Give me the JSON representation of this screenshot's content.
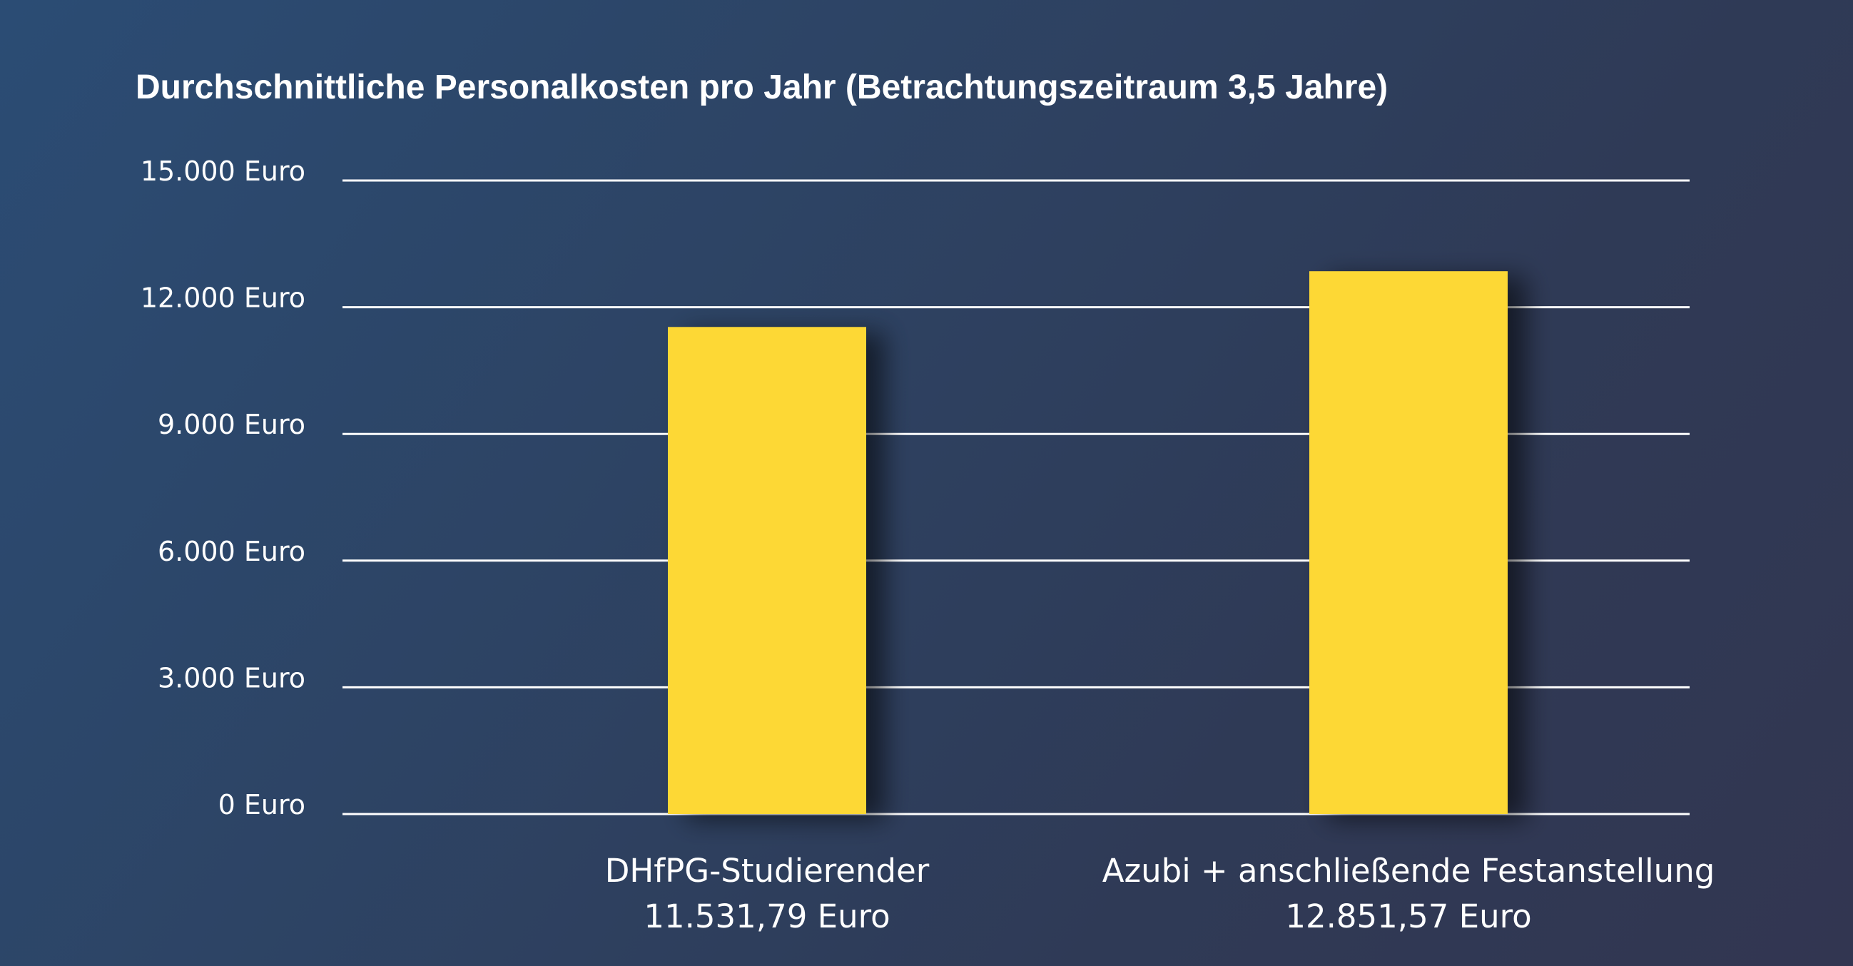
{
  "chart_data": {
    "type": "bar",
    "title": "Durchschnittliche Personalkosten pro Jahr (Betrachtungszeitraum 3,5 Jahre)",
    "categories": [
      "DHfPG-Studierender",
      "Azubi + anschließende Festanstellung"
    ],
    "value_labels": [
      "11.531,79 Euro",
      "12.851,57 Euro"
    ],
    "values": [
      11531.79,
      12851.57
    ],
    "ylim": [
      0,
      15000
    ],
    "yticks": [
      0,
      3000,
      6000,
      9000,
      12000,
      15000
    ],
    "ytick_labels": [
      "0 Euro",
      "3.000 Euro",
      "6.000 Euro",
      "9.000 Euro",
      "12.000 Euro",
      "15.000 Euro"
    ],
    "grid": true,
    "legend": "none",
    "colors": {
      "bar": "#fdd835",
      "grid": "#ffffff",
      "text": "#ffffff",
      "background_start": "#2b4c74",
      "background_end": "#323651"
    }
  }
}
